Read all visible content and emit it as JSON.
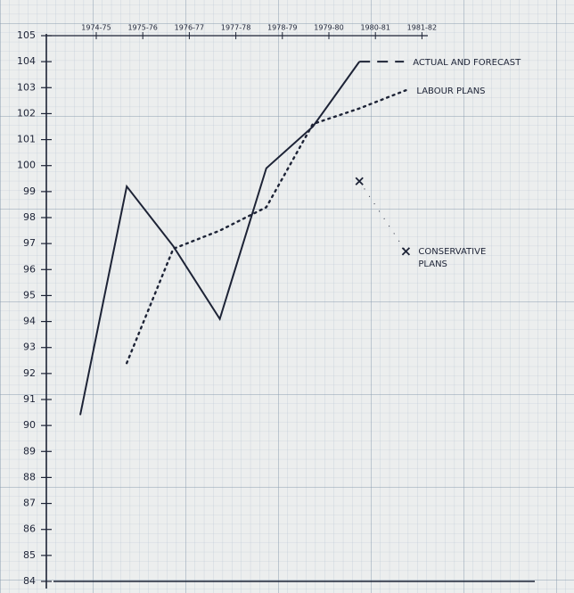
{
  "chart_data": {
    "type": "line",
    "categories": [
      "1974-75",
      "1975-76",
      "1976-77",
      "1977-78",
      "1978-79",
      "1979-80",
      "1980-81",
      "1981-82"
    ],
    "series": [
      {
        "name": "ACTUAL AND FORECAST",
        "color": "#1d2336",
        "style": "solid",
        "values": [
          90.4,
          99.2,
          96.9,
          94.1,
          99.9,
          101.5,
          104.0,
          null
        ]
      },
      {
        "name": "LABOUR PLANS",
        "color": "#1d2336",
        "style": "dotted",
        "values": [
          null,
          92.4,
          96.8,
          97.5,
          98.4,
          101.6,
          102.2,
          102.9
        ]
      },
      {
        "name": "CONSERVATIVE PLANS",
        "color": "#1d2336",
        "style": "crosses",
        "values": [
          null,
          null,
          null,
          null,
          null,
          null,
          99.4,
          96.7
        ]
      }
    ],
    "ylim": [
      84,
      105
    ],
    "yticks": [
      84,
      85,
      86,
      87,
      88,
      89,
      90,
      91,
      92,
      93,
      94,
      95,
      96,
      97,
      98,
      99,
      100,
      101,
      102,
      103,
      104,
      105
    ],
    "grid": true
  }
}
